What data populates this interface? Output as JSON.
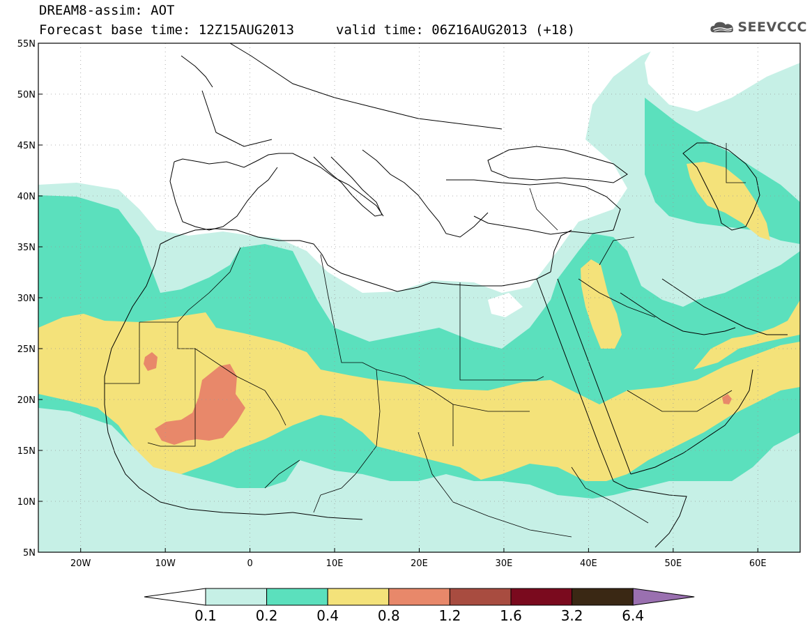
{
  "header": {
    "line1": "DREAM8-assim: AOT",
    "line2": "Forecast base time: 12Z15AUG2013",
    "line3": "valid time: 06Z16AUG2013 (+18)"
  },
  "logo": {
    "text": "SEEVCCC",
    "icon": "cloud-icon",
    "color": "#555555"
  },
  "map": {
    "lon_range": [
      -25,
      65
    ],
    "lat_range": [
      5,
      55
    ],
    "lat_ticks": [
      "5N",
      "10N",
      "15N",
      "20N",
      "25N",
      "30N",
      "35N",
      "40N",
      "45N",
      "50N",
      "55N"
    ],
    "lon_ticks": [
      "20W",
      "10W",
      "0",
      "10E",
      "20E",
      "30E",
      "40E",
      "50E",
      "60E"
    ],
    "lat_values": [
      5,
      10,
      15,
      20,
      25,
      30,
      35,
      40,
      45,
      50,
      55
    ],
    "lon_values": [
      -20,
      -10,
      0,
      10,
      20,
      30,
      40,
      50,
      60
    ],
    "grid": true
  },
  "colorbar": {
    "labels": [
      "0.1",
      "0.2",
      "0.4",
      "0.8",
      "1.2",
      "1.6",
      "3.2",
      "6.4"
    ],
    "colors": [
      "#ffffff",
      "#c6f0e6",
      "#5be0bd",
      "#f4e27a",
      "#e8886a",
      "#a84c40",
      "#7a0a1e",
      "#3a2814",
      "#9a70b0"
    ]
  },
  "legend": {
    "levels": [
      {
        "color": "#c6f0e6"
      },
      {
        "color": "#5be0bd"
      },
      {
        "color": "#f4e27a"
      },
      {
        "color": "#e8886a"
      }
    ]
  }
}
